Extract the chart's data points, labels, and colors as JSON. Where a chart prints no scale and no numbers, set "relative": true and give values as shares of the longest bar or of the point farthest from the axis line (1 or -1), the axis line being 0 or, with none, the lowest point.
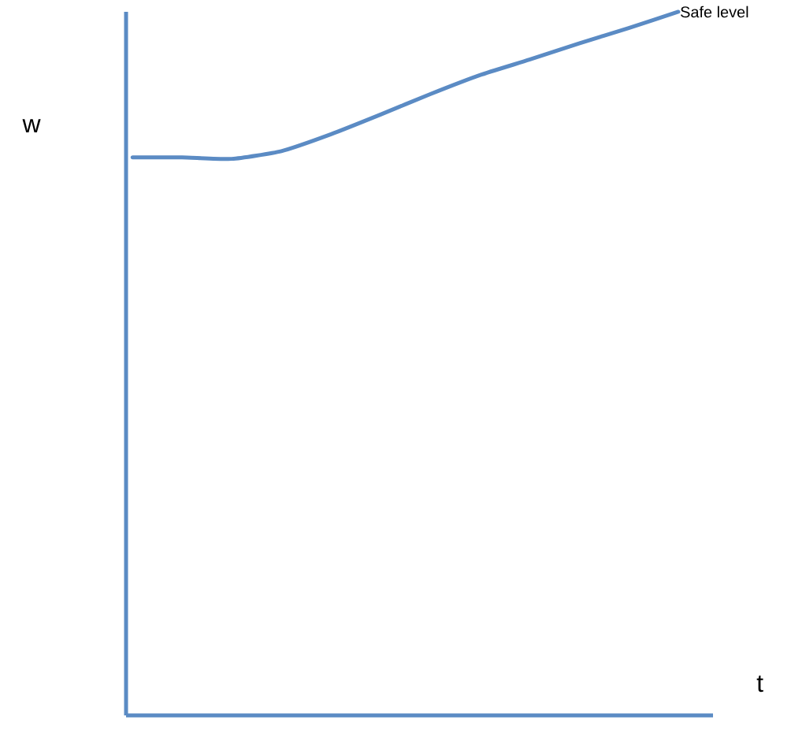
{
  "chart_data": {
    "type": "line",
    "relative": true,
    "xlabel": "t",
    "ylabel": "w",
    "categories": [
      null,
      null,
      null,
      null,
      null,
      null,
      null,
      null,
      null,
      null,
      null,
      null
    ],
    "series": [
      {
        "name": "Safe level",
        "color": "#5b8bc4",
        "values": [
          0.793,
          0.793,
          0.791,
          0.802,
          0.826,
          0.854,
          0.883,
          0.91,
          0.932,
          0.955,
          0.977,
          1.0
        ]
      }
    ]
  }
}
